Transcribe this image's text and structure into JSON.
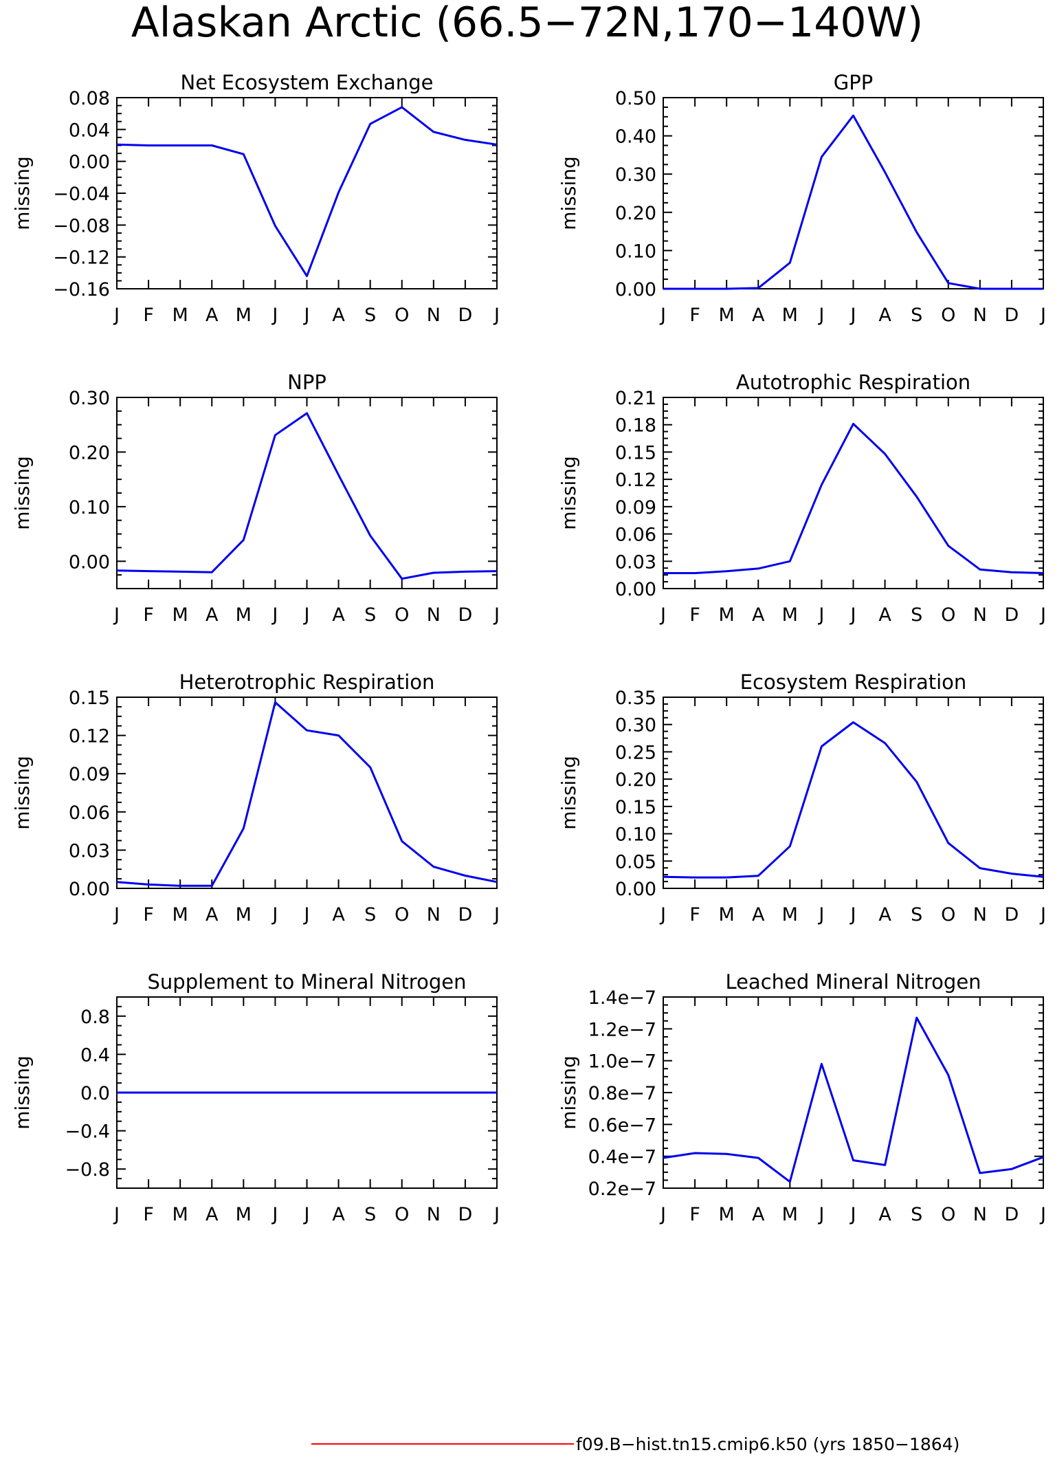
{
  "title": "Alaskan Arctic (66.5−72N,170−140W)",
  "legend": {
    "label": "f09.B−hist.tn15.cmip6.k50 (yrs 1850−1864)",
    "color": "#ff0000"
  },
  "line_color": "#0000ee",
  "chart_data": [
    {
      "type": "line",
      "title": "Net Ecosystem Exchange",
      "ylabel": "missing",
      "x": [
        "J",
        "F",
        "M",
        "A",
        "M",
        "J",
        "J",
        "A",
        "S",
        "O",
        "N",
        "D",
        "J"
      ],
      "ylim": [
        -0.16,
        0.08
      ],
      "yticks": [
        -0.16,
        -0.12,
        -0.08,
        -0.04,
        0.0,
        0.04,
        0.08
      ],
      "ytick_labels": [
        "−0.16",
        "−0.12",
        "−0.08",
        "−0.04",
        "0.00",
        "0.04",
        "0.08"
      ],
      "values": [
        0.021,
        0.02,
        0.02,
        0.02,
        0.009,
        -0.081,
        -0.144,
        -0.039,
        0.047,
        0.068,
        0.037,
        0.027,
        0.021
      ]
    },
    {
      "type": "line",
      "title": "GPP",
      "ylabel": "missing",
      "x": [
        "J",
        "F",
        "M",
        "A",
        "M",
        "J",
        "J",
        "A",
        "S",
        "O",
        "N",
        "D",
        "J"
      ],
      "ylim": [
        0.0,
        0.5
      ],
      "yticks": [
        0.0,
        0.1,
        0.2,
        0.3,
        0.4,
        0.5
      ],
      "ytick_labels": [
        "0.00",
        "0.10",
        "0.20",
        "0.30",
        "0.40",
        "0.50"
      ],
      "values": [
        0.0,
        0.0,
        0.0,
        0.002,
        0.068,
        0.345,
        0.453,
        0.305,
        0.148,
        0.015,
        0.0,
        0.0,
        0.0
      ]
    },
    {
      "type": "line",
      "title": "NPP",
      "ylabel": "missing",
      "x": [
        "J",
        "F",
        "M",
        "A",
        "M",
        "J",
        "J",
        "A",
        "S",
        "O",
        "N",
        "D",
        "J"
      ],
      "ylim": [
        -0.05,
        0.3
      ],
      "yticks": [
        0.0,
        0.1,
        0.2,
        0.3
      ],
      "ytick_labels": [
        "0.00",
        "0.10",
        "0.20",
        "0.30"
      ],
      "values": [
        -0.017,
        -0.018,
        -0.019,
        -0.02,
        0.039,
        0.231,
        0.271,
        0.158,
        0.047,
        -0.032,
        -0.021,
        -0.019,
        -0.018
      ]
    },
    {
      "type": "line",
      "title": "Autotrophic Respiration",
      "ylabel": "missing",
      "x": [
        "J",
        "F",
        "M",
        "A",
        "M",
        "J",
        "J",
        "A",
        "S",
        "O",
        "N",
        "D",
        "J"
      ],
      "ylim": [
        0.0,
        0.21
      ],
      "yticks": [
        0.0,
        0.03,
        0.06,
        0.09,
        0.12,
        0.15,
        0.18,
        0.21
      ],
      "ytick_labels": [
        "0.00",
        "0.03",
        "0.06",
        "0.09",
        "0.12",
        "0.15",
        "0.18",
        "0.21"
      ],
      "values": [
        0.017,
        0.017,
        0.019,
        0.022,
        0.03,
        0.114,
        0.181,
        0.148,
        0.101,
        0.047,
        0.021,
        0.018,
        0.017
      ]
    },
    {
      "type": "line",
      "title": "Heterotrophic Respiration",
      "ylabel": "missing",
      "x": [
        "J",
        "F",
        "M",
        "A",
        "M",
        "J",
        "J",
        "A",
        "S",
        "O",
        "N",
        "D",
        "J"
      ],
      "ylim": [
        0.0,
        0.15
      ],
      "yticks": [
        0.0,
        0.03,
        0.06,
        0.09,
        0.12,
        0.15
      ],
      "ytick_labels": [
        "0.00",
        "0.03",
        "0.06",
        "0.09",
        "0.12",
        "0.15"
      ],
      "values": [
        0.005,
        0.003,
        0.002,
        0.002,
        0.047,
        0.146,
        0.124,
        0.12,
        0.095,
        0.037,
        0.017,
        0.01,
        0.005
      ]
    },
    {
      "type": "line",
      "title": "Ecosystem Respiration",
      "ylabel": "missing",
      "x": [
        "J",
        "F",
        "M",
        "A",
        "M",
        "J",
        "J",
        "A",
        "S",
        "O",
        "N",
        "D",
        "J"
      ],
      "ylim": [
        0.0,
        0.35
      ],
      "yticks": [
        0.0,
        0.05,
        0.1,
        0.15,
        0.2,
        0.25,
        0.3,
        0.35
      ],
      "ytick_labels": [
        "0.00",
        "0.05",
        "0.10",
        "0.15",
        "0.20",
        "0.25",
        "0.30",
        "0.35"
      ],
      "values": [
        0.021,
        0.02,
        0.02,
        0.023,
        0.077,
        0.26,
        0.304,
        0.266,
        0.195,
        0.083,
        0.037,
        0.027,
        0.021
      ]
    },
    {
      "type": "line",
      "title": "Supplement to Mineral Nitrogen",
      "ylabel": "missing",
      "x": [
        "J",
        "F",
        "M",
        "A",
        "M",
        "J",
        "J",
        "A",
        "S",
        "O",
        "N",
        "D",
        "J"
      ],
      "ylim": [
        -1.0,
        1.0
      ],
      "yticks": [
        -0.8,
        -0.4,
        0.0,
        0.4,
        0.8
      ],
      "ytick_labels": [
        "−0.8",
        "−0.4",
        "0.0",
        "0.4",
        "0.8"
      ],
      "values": [
        0,
        0,
        0,
        0,
        0,
        0,
        0,
        0,
        0,
        0,
        0,
        0,
        0
      ]
    },
    {
      "type": "line",
      "title": "Leached Mineral Nitrogen",
      "ylabel": "missing",
      "x": [
        "J",
        "F",
        "M",
        "A",
        "M",
        "J",
        "J",
        "A",
        "S",
        "O",
        "N",
        "D",
        "J"
      ],
      "ylim": [
        2e-08,
        1.4e-07
      ],
      "yticks": [
        2e-08,
        4e-08,
        6e-08,
        8e-08,
        1e-07,
        1.2e-07,
        1.4e-07
      ],
      "ytick_labels": [
        "0.2e−7",
        "0.4e−7",
        "0.6e−7",
        "0.8e−7",
        "1.0e−7",
        "1.2e−7",
        "1.4e−7"
      ],
      "values": [
        3.9e-08,
        4.2e-08,
        4.15e-08,
        3.9e-08,
        2.4e-08,
        9.8e-08,
        3.75e-08,
        3.45e-08,
        1.27e-07,
        9.1e-08,
        2.95e-08,
        3.2e-08,
        3.95e-08
      ]
    }
  ]
}
